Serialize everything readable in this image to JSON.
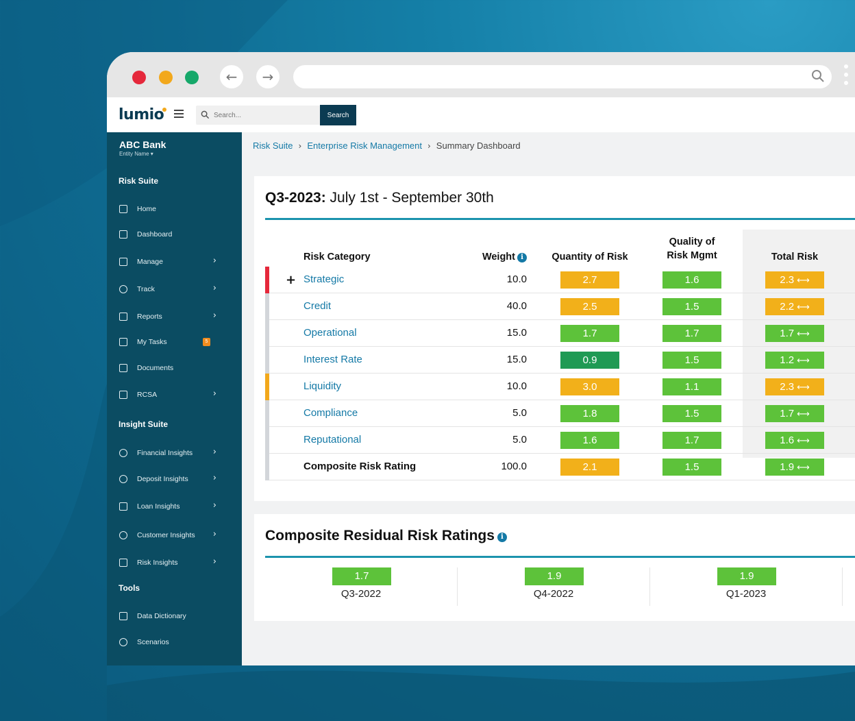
{
  "app": {
    "logo": "lumio",
    "search_placeholder": "Search...",
    "search_button": "Search"
  },
  "sidebar": {
    "entity_name": "ABC Bank",
    "entity_sub": "Entity Name ▾",
    "sections": [
      {
        "title": "Risk Suite",
        "items": [
          {
            "label": "Home",
            "icon": "home-icon",
            "chevron": false
          },
          {
            "label": "Dashboard",
            "icon": "layers-icon",
            "chevron": false
          },
          {
            "label": "Manage",
            "icon": "users-icon",
            "chevron": true
          },
          {
            "label": "Track",
            "icon": "gauge-icon",
            "chevron": true
          },
          {
            "label": "Reports",
            "icon": "calendar-icon",
            "chevron": true
          },
          {
            "label": "My Tasks",
            "icon": "clipboard-icon",
            "chevron": false,
            "badge": "5"
          },
          {
            "label": "Documents",
            "icon": "document-icon",
            "chevron": false
          },
          {
            "label": "RCSA",
            "icon": "briefcase-icon",
            "chevron": true
          }
        ]
      },
      {
        "title": "Insight Suite",
        "items": [
          {
            "label": "Financial Insights",
            "icon": "chart-icon",
            "chevron": true
          },
          {
            "label": "Deposit Insights",
            "icon": "globe-icon",
            "chevron": true
          },
          {
            "label": "Loan Insights",
            "icon": "calculator-icon",
            "chevron": true
          },
          {
            "label": "Customer Insights",
            "icon": "location-icon",
            "chevron": true
          },
          {
            "label": "Risk Insights",
            "icon": "window-icon",
            "chevron": true
          }
        ]
      },
      {
        "title": "Tools",
        "items": [
          {
            "label": "Data Dictionary",
            "icon": "cube-icon",
            "chevron": false
          },
          {
            "label": "Scenarios",
            "icon": "database-icon",
            "chevron": false
          }
        ]
      }
    ]
  },
  "breadcrumb": [
    "Risk Suite",
    "Enterprise Risk Management",
    "Summary Dashboard"
  ],
  "summary": {
    "period_bold": "Q3-2023:",
    "period_rest": " July 1st - September 30th",
    "headers": {
      "category": "Risk Category",
      "weight": "Weight",
      "quantity": "Quantity of Risk",
      "quality_line1": "Quality of",
      "quality_line2": "Risk Mgmt",
      "total": "Total Risk"
    },
    "rows": [
      {
        "category": "Strategic",
        "weight": "10.0",
        "quantity": "2.7",
        "quality": "1.6",
        "total": "2.3",
        "flag": "red",
        "expand": true
      },
      {
        "category": "Credit",
        "weight": "40.0",
        "quantity": "2.5",
        "quality": "1.5",
        "total": "2.2",
        "flag": "gray"
      },
      {
        "category": "Operational",
        "weight": "15.0",
        "quantity": "1.7",
        "quality": "1.7",
        "total": "1.7",
        "flag": "gray"
      },
      {
        "category": "Interest Rate",
        "weight": "15.0",
        "quantity": "0.9",
        "quality": "1.5",
        "total": "1.2",
        "flag": "gray"
      },
      {
        "category": "Liquidity",
        "weight": "10.0",
        "quantity": "3.0",
        "quality": "1.1",
        "total": "2.3",
        "flag": "yellow"
      },
      {
        "category": "Compliance",
        "weight": "5.0",
        "quantity": "1.8",
        "quality": "1.5",
        "total": "1.7",
        "flag": "gray"
      },
      {
        "category": "Reputational",
        "weight": "5.0",
        "quantity": "1.6",
        "quality": "1.7",
        "total": "1.6",
        "flag": "gray"
      },
      {
        "category": "Composite Risk Rating",
        "weight": "100.0",
        "quantity": "2.1",
        "quality": "1.5",
        "total": "1.9",
        "flag": "gray",
        "bold": true
      }
    ]
  },
  "composite": {
    "title": "Composite Residual Risk Ratings",
    "quarters": [
      {
        "label": "Q3-2022",
        "value": "1.7"
      },
      {
        "label": "Q4-2022",
        "value": "1.9"
      },
      {
        "label": "Q1-2023",
        "value": "1.9"
      }
    ]
  },
  "colors": {
    "yellow": "#f2b01a",
    "green": "#5dc23a",
    "dark_green": "#1f9a54",
    "sidebar": "#0b4c62",
    "accent": "#1479a6"
  }
}
